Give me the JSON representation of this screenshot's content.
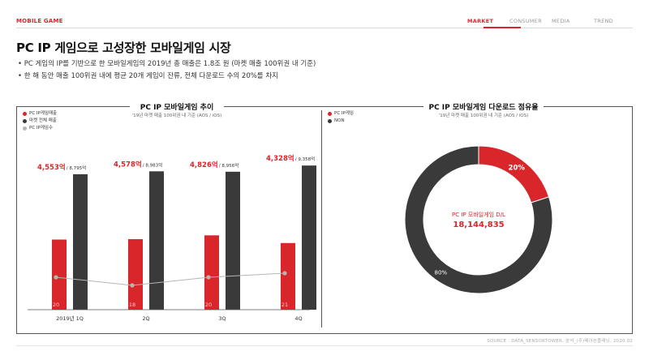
{
  "header": {
    "section_tag": "MOBILE GAME",
    "nav": [
      {
        "label": "MARKET",
        "active": true
      },
      {
        "label": "CONSUMER",
        "active": false
      },
      {
        "label": "MEDIA",
        "active": false
      },
      {
        "label": "TREND",
        "active": false
      }
    ]
  },
  "page": {
    "title": "PC IP 게임으로 고성장한 모바일게임 시장",
    "bullets": [
      "• PC 게임의 IP를 기반으로 한 모바일게임의 2019년 총 매출은 1.8조 원 (마켓 매출 100위권 내 기준)",
      "• 한 해 동안 매출 100위권 내에 평균 20개 게임이 잔류, 전체 다운로드 수의 20%를 차지"
    ],
    "source": "SOURCE : DATA_SENSORTOWER, 분석_(주)메이븐플래닝, 2020.02"
  },
  "colors": {
    "accent": "#d9262b",
    "dark": "#3a3a3a",
    "gray": "#b5b5b5"
  },
  "chart_data": [
    {
      "type": "bar",
      "title": "PC IP 모바일게임 추이",
      "subtitle": "'19년 마켓 매출 100위권 내 기준 (AOS / iOS)",
      "legend": [
        "PC IP게임매출",
        "마켓 전체 매출",
        "PC IP게임수"
      ],
      "legend_placement": "top-left",
      "categories": [
        "2019년 1Q",
        "2Q",
        "3Q",
        "4Q"
      ],
      "series": [
        {
          "name": "PC IP게임매출",
          "values": [
            4553,
            4578,
            4826,
            4328
          ],
          "labels": [
            "4,553억",
            "4,578억",
            "4,826억",
            "4,328억"
          ]
        },
        {
          "name": "마켓 전체 매출",
          "values": [
            8795,
            8983,
            8956,
            9358
          ],
          "labels": [
            "8,795억",
            "8,983억",
            "8,956억",
            "9,358억"
          ]
        },
        {
          "name": "PC IP게임수",
          "type": "line",
          "values": [
            20,
            18,
            20,
            21
          ],
          "labels": [
            "20",
            "18",
            "20",
            "21"
          ]
        }
      ],
      "label_separator": " / ",
      "ylim": [
        0,
        10000
      ],
      "grid": false
    },
    {
      "type": "pie",
      "title": "PC IP 모바일게임 다운로드 점유율",
      "subtitle": "'19년 마켓 매출 100위권 내 기준 (AOS / iOS)",
      "legend": [
        "PC IP게임",
        "NON"
      ],
      "legend_placement": "top-left",
      "slices": [
        {
          "name": "PC IP게임",
          "value": 20,
          "label": "20%"
        },
        {
          "name": "NON",
          "value": 80,
          "label": "80%"
        }
      ],
      "center_label": "PC IP 모바일게임 D/L",
      "center_value": "18,144,835"
    }
  ]
}
